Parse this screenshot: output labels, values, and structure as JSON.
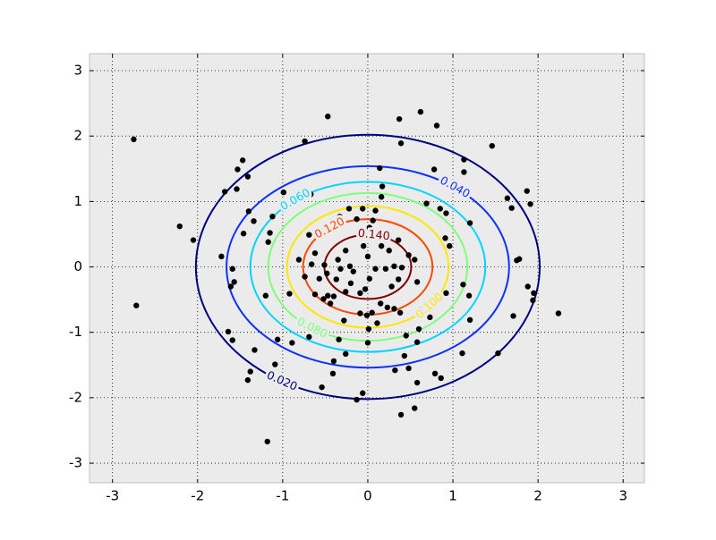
{
  "chart_data": {
    "type": "contour",
    "xlim": [
      -3.27,
      3.25
    ],
    "ylim": [
      -3.3,
      3.26
    ],
    "xticks": [
      -3,
      -2,
      -1,
      0,
      1,
      2,
      3
    ],
    "yticks": [
      -3,
      -2,
      -1,
      0,
      1,
      2,
      3
    ],
    "grid": true,
    "contours": [
      {
        "level": {
          "value": 0.02,
          "label": "0.020"
        },
        "color": "#00007f",
        "center": [
          0,
          0
        ],
        "x_radius": 2.02,
        "y_radius": 2.02
      },
      {
        "level": {
          "value": 0.04,
          "label": "0.040"
        },
        "color": "#0c30ff",
        "center": [
          0,
          0
        ],
        "x_radius": 1.66,
        "y_radius": 1.54
      },
      {
        "level": {
          "value": 0.06,
          "label": "0.060"
        },
        "color": "#00d4ff",
        "center": [
          0,
          0
        ],
        "x_radius": 1.38,
        "y_radius": 1.3
      },
      {
        "level": {
          "value": 0.08,
          "label": "0.080"
        },
        "color": "#7dff7a",
        "center": [
          0,
          0
        ],
        "x_radius": 1.17,
        "y_radius": 1.13
      },
      {
        "level": {
          "value": 0.1,
          "label": "0.100"
        },
        "color": "#ffe600",
        "center": [
          0,
          0
        ],
        "x_radius": 0.95,
        "y_radius": 0.93
      },
      {
        "level": {
          "value": 0.12,
          "label": "0.120"
        },
        "color": "#ff4800",
        "center": [
          0,
          0
        ],
        "x_radius": 0.76,
        "y_radius": 0.73
      },
      {
        "level": {
          "value": 0.14,
          "label": "0.140"
        },
        "color": "#7f0000",
        "center": [
          0,
          0
        ],
        "x_radius": 0.51,
        "y_radius": 0.49
      }
    ],
    "points": {
      "color": "#000000",
      "x": [
        -2.75,
        -2.72,
        -2.21,
        -2.05,
        -1.72,
        -1.68,
        -1.54,
        -1.53,
        -1.47,
        -1.41,
        -1.4,
        -1.34,
        -1.46,
        -1.59,
        -1.57,
        -1.61,
        -1.64,
        -1.59,
        -1.33,
        -1.38,
        -1.41,
        -1.18,
        -1.09,
        -0.89,
        -1.2,
        -1.17,
        -1.15,
        -1.12,
        -0.99,
        -0.67,
        -0.74,
        -0.47,
        -0.69,
        -0.81,
        -0.62,
        -0.57,
        -0.52,
        -0.47,
        -0.44,
        -0.4,
        -0.37,
        -0.32,
        -0.35,
        -0.26,
        -0.21,
        -0.17,
        -0.2,
        -0.26,
        -0.09,
        -0.03,
        0.02,
        0,
        -0.05,
        0.02,
        0.06,
        0.09,
        -0.13,
        -0.06,
        -0.22,
        -0.33,
        -0.42,
        0.14,
        0.17,
        0.16,
        0.39,
        0.37,
        0.62,
        0.81,
        0.78,
        0.69,
        0.85,
        0.92,
        0.91,
        0.96,
        1.13,
        1.13,
        1.2,
        1.46,
        1.64,
        1.69,
        1.87,
        1.91,
        1.78,
        1.75,
        1.88,
        1.95,
        1.94,
        1.71,
        1.53,
        2.24,
        1.11,
        0.86,
        0.79,
        0.58,
        0.48,
        0.43,
        0.58,
        0.45,
        0.6,
        0.73,
        0.61,
        0.38,
        0.31,
        0.23,
        0.15,
        0.28,
        0.36,
        0.4,
        0.31,
        0.21,
        0.25,
        0.36,
        0.48,
        0.55,
        0.58,
        0.92,
        1.19,
        1.12,
        1.2,
        0.32,
        0.55,
        0.39,
        -0.06,
        -0.13,
        -0.54,
        -0.41,
        -0.4,
        -0.26,
        -0.34,
        0,
        0.01,
        -0.01,
        0.05,
        0.11,
        -0.09,
        -0.28,
        -0.69,
        -1.06,
        -0.92,
        -0.74,
        -0.66,
        -0.51,
        -0.48,
        -0.62,
        0.16,
        0.09
      ],
      "y": [
        1.95,
        -0.59,
        0.62,
        0.41,
        0.16,
        1.15,
        1.19,
        1.49,
        1.63,
        1.38,
        0.85,
        0.7,
        0.51,
        -0.03,
        -0.23,
        -0.3,
        -0.99,
        -1.12,
        -1.27,
        -1.6,
        -1.73,
        -2.67,
        -1.49,
        -1.16,
        -0.44,
        0.38,
        0.52,
        0.77,
        1.14,
        1.11,
        1.92,
        2.3,
        0.49,
        0.11,
        0.21,
        -0.18,
        -0.49,
        -0.44,
        -0.56,
        -0.45,
        -0.19,
        -0.03,
        0.11,
        0.25,
        0.01,
        -0.07,
        -0.25,
        -0.38,
        -0.4,
        -0.34,
        -0.18,
        0.16,
        0.32,
        0.6,
        0.71,
        0.86,
        0.73,
        0.89,
        0.89,
        0.77,
        0.64,
        1.51,
        1.23,
        1.07,
        1.89,
        2.26,
        2.37,
        2.16,
        1.49,
        0.97,
        0.89,
        0.82,
        0.44,
        0.32,
        1.64,
        1.45,
        0.67,
        1.85,
        1.05,
        0.9,
        1.16,
        0.96,
        0.12,
        0.1,
        -0.3,
        -0.4,
        -0.51,
        -0.75,
        -1.32,
        -0.71,
        -1.32,
        -1.7,
        -1.63,
        -1.77,
        -1.55,
        -1.36,
        -1.15,
        -1.05,
        -0.95,
        -0.77,
        -0.66,
        -0.7,
        -0.64,
        -0.62,
        -0.56,
        -0.3,
        -0.19,
        -0.01,
        0.01,
        -0.03,
        0.25,
        0.41,
        0.18,
        0.11,
        -0.23,
        -0.4,
        -0.44,
        -0.27,
        -0.81,
        -1.58,
        -2.16,
        -2.26,
        -1.93,
        -2.03,
        -1.84,
        -1.63,
        -1.44,
        -1.33,
        -1.11,
        -1.16,
        -0.95,
        -0.74,
        -0.7,
        -0.86,
        -0.71,
        -0.82,
        -1.07,
        -1.11,
        -0.41,
        -0.15,
        0.04,
        0.03,
        -0.1,
        -0.42,
        0.32,
        -0.03
      ]
    }
  }
}
